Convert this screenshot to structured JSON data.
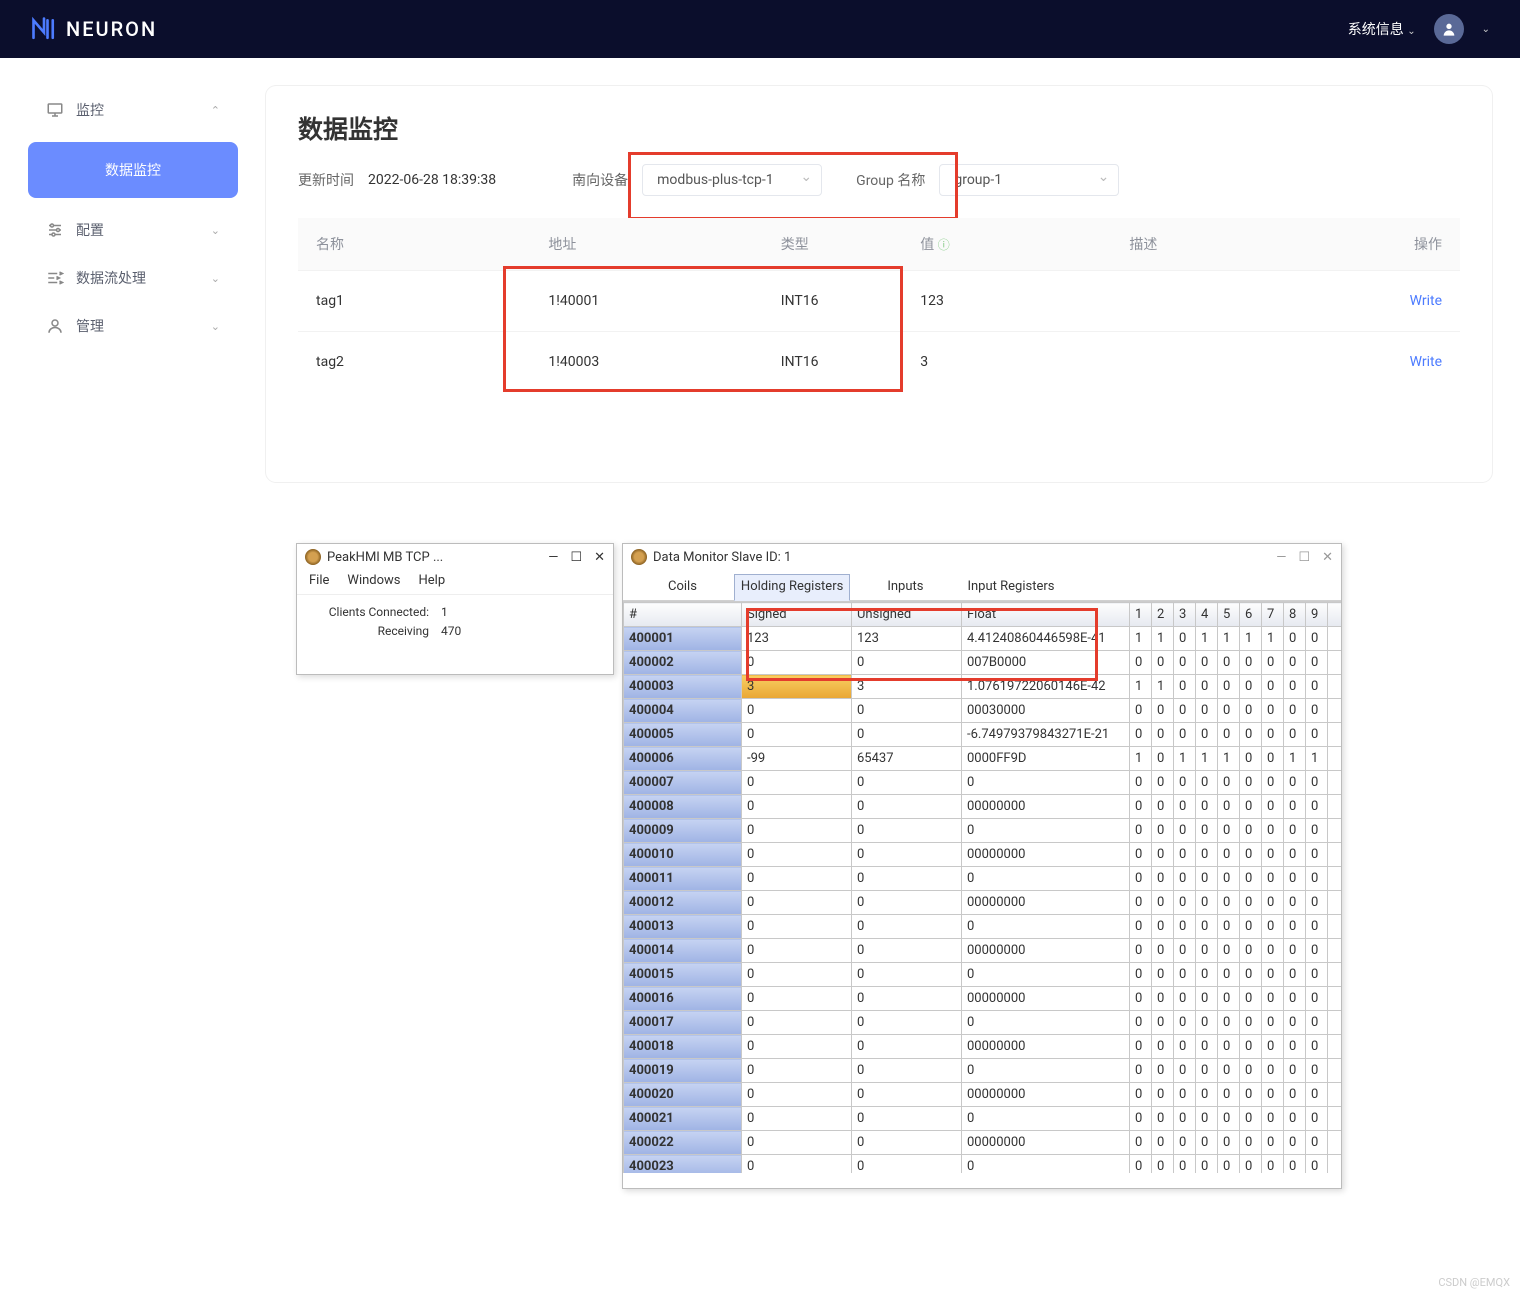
{
  "topbar": {
    "brand": "NEURON",
    "sysinfo": "系统信息"
  },
  "sidebar": {
    "monitor": "监控",
    "data_monitor": "数据监控",
    "config": "配置",
    "stream": "数据流处理",
    "manage": "管理"
  },
  "main": {
    "title": "数据监控",
    "update_label": "更新时间",
    "update_value": "2022-06-28 18:39:38",
    "south_label": "南向设备",
    "south_value": "modbus-plus-tcp-1",
    "group_label": "Group 名称",
    "group_value": "group-1",
    "columns": {
      "name": "名称",
      "addr": "地址",
      "type": "类型",
      "value": "值",
      "desc": "描述",
      "op": "操作"
    },
    "rows": [
      {
        "name": "tag1",
        "addr": "1!40001",
        "type": "INT16",
        "value": "123",
        "desc": "",
        "op": "Write"
      },
      {
        "name": "tag2",
        "addr": "1!40003",
        "type": "INT16",
        "value": "3",
        "desc": "",
        "op": "Write"
      }
    ]
  },
  "peak": {
    "title": "PeakHMI MB TCP ...",
    "menu": [
      "File",
      "Windows",
      "Help"
    ],
    "clients_label": "Clients Connected:",
    "clients_value": "1",
    "recv_label": "Receiving",
    "recv_value": "470"
  },
  "dm": {
    "title": "Data Monitor Slave ID: 1",
    "tabs": [
      "Coils",
      "Holding Registers",
      "Inputs",
      "Input Registers"
    ],
    "active_tab": 1,
    "headers": [
      "#",
      "Signed",
      "Unsigned",
      "Float",
      "1",
      "2",
      "3",
      "4",
      "5",
      "6",
      "7",
      "8",
      "9"
    ],
    "highlight_row": 2,
    "rows": [
      [
        "400001",
        "123",
        "123",
        "4.41240860446598E-41",
        "1",
        "1",
        "0",
        "1",
        "1",
        "1",
        "1",
        "0",
        "0"
      ],
      [
        "400002",
        "0",
        "0",
        "007B0000",
        "0",
        "0",
        "0",
        "0",
        "0",
        "0",
        "0",
        "0",
        "0"
      ],
      [
        "400003",
        "3",
        "3",
        "1.07619722060146E-42",
        "1",
        "1",
        "0",
        "0",
        "0",
        "0",
        "0",
        "0",
        "0"
      ],
      [
        "400004",
        "0",
        "0",
        "00030000",
        "0",
        "0",
        "0",
        "0",
        "0",
        "0",
        "0",
        "0",
        "0"
      ],
      [
        "400005",
        "0",
        "0",
        "-6.74979379843271E-21",
        "0",
        "0",
        "0",
        "0",
        "0",
        "0",
        "0",
        "0",
        "0"
      ],
      [
        "400006",
        "-99",
        "65437",
        "0000FF9D",
        "1",
        "0",
        "1",
        "1",
        "1",
        "0",
        "0",
        "1",
        "1"
      ],
      [
        "400007",
        "0",
        "0",
        "0",
        "0",
        "0",
        "0",
        "0",
        "0",
        "0",
        "0",
        "0",
        "0"
      ],
      [
        "400008",
        "0",
        "0",
        "00000000",
        "0",
        "0",
        "0",
        "0",
        "0",
        "0",
        "0",
        "0",
        "0"
      ],
      [
        "400009",
        "0",
        "0",
        "0",
        "0",
        "0",
        "0",
        "0",
        "0",
        "0",
        "0",
        "0",
        "0"
      ],
      [
        "400010",
        "0",
        "0",
        "00000000",
        "0",
        "0",
        "0",
        "0",
        "0",
        "0",
        "0",
        "0",
        "0"
      ],
      [
        "400011",
        "0",
        "0",
        "0",
        "0",
        "0",
        "0",
        "0",
        "0",
        "0",
        "0",
        "0",
        "0"
      ],
      [
        "400012",
        "0",
        "0",
        "00000000",
        "0",
        "0",
        "0",
        "0",
        "0",
        "0",
        "0",
        "0",
        "0"
      ],
      [
        "400013",
        "0",
        "0",
        "0",
        "0",
        "0",
        "0",
        "0",
        "0",
        "0",
        "0",
        "0",
        "0"
      ],
      [
        "400014",
        "0",
        "0",
        "00000000",
        "0",
        "0",
        "0",
        "0",
        "0",
        "0",
        "0",
        "0",
        "0"
      ],
      [
        "400015",
        "0",
        "0",
        "0",
        "0",
        "0",
        "0",
        "0",
        "0",
        "0",
        "0",
        "0",
        "0"
      ],
      [
        "400016",
        "0",
        "0",
        "00000000",
        "0",
        "0",
        "0",
        "0",
        "0",
        "0",
        "0",
        "0",
        "0"
      ],
      [
        "400017",
        "0",
        "0",
        "0",
        "0",
        "0",
        "0",
        "0",
        "0",
        "0",
        "0",
        "0",
        "0"
      ],
      [
        "400018",
        "0",
        "0",
        "00000000",
        "0",
        "0",
        "0",
        "0",
        "0",
        "0",
        "0",
        "0",
        "0"
      ],
      [
        "400019",
        "0",
        "0",
        "0",
        "0",
        "0",
        "0",
        "0",
        "0",
        "0",
        "0",
        "0",
        "0"
      ],
      [
        "400020",
        "0",
        "0",
        "00000000",
        "0",
        "0",
        "0",
        "0",
        "0",
        "0",
        "0",
        "0",
        "0"
      ],
      [
        "400021",
        "0",
        "0",
        "0",
        "0",
        "0",
        "0",
        "0",
        "0",
        "0",
        "0",
        "0",
        "0"
      ],
      [
        "400022",
        "0",
        "0",
        "00000000",
        "0",
        "0",
        "0",
        "0",
        "0",
        "0",
        "0",
        "0",
        "0"
      ],
      [
        "400023",
        "0",
        "0",
        "0",
        "0",
        "0",
        "0",
        "0",
        "0",
        "0",
        "0",
        "0",
        "0"
      ]
    ]
  },
  "watermark": "CSDN @EMQX"
}
